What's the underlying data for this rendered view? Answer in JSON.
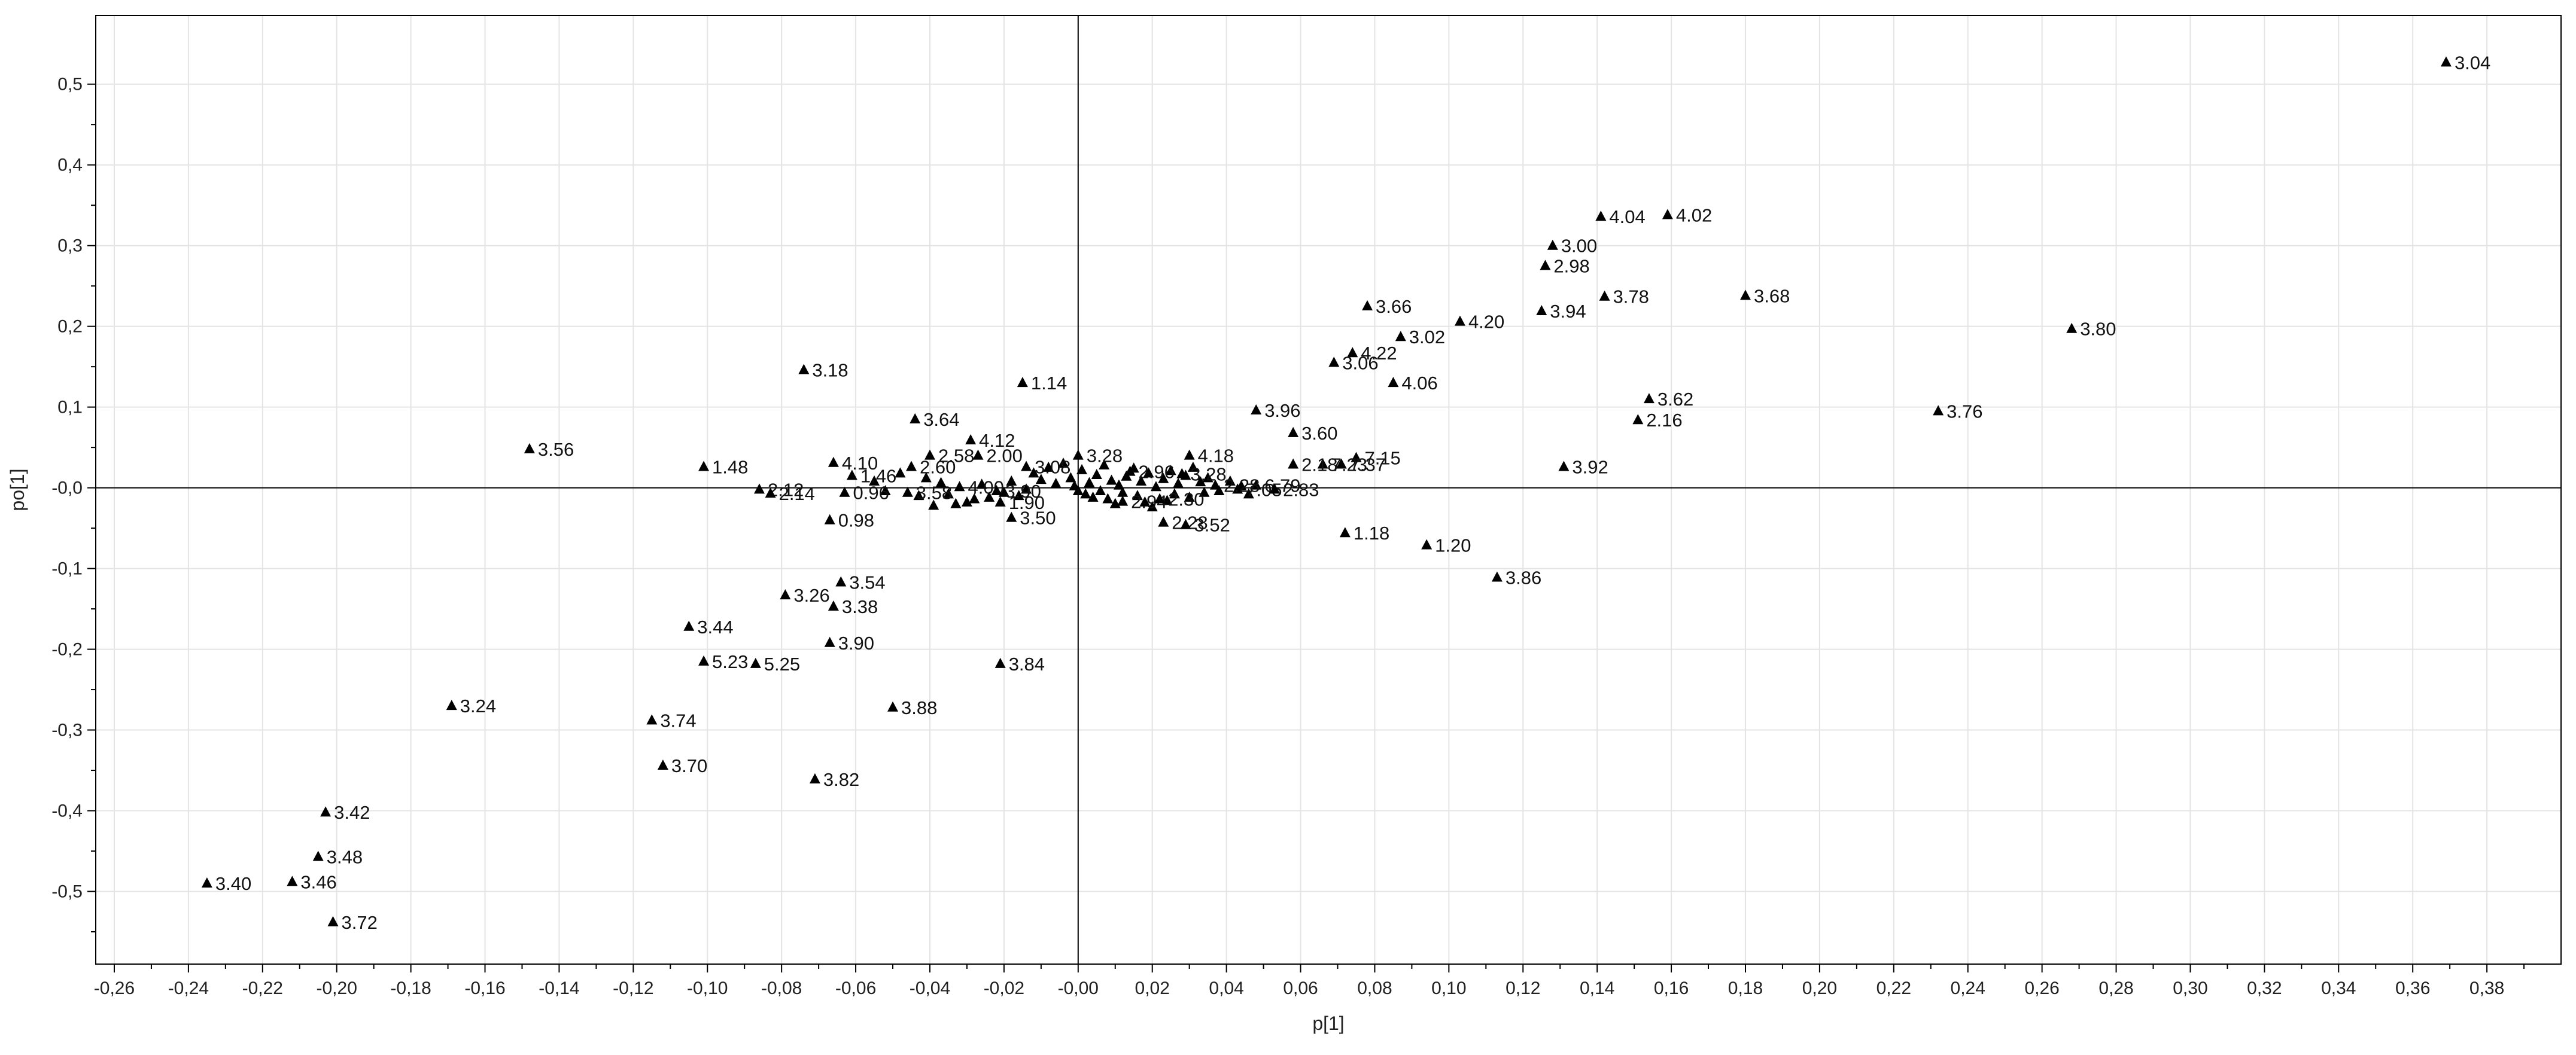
{
  "chart_data": {
    "type": "scatter",
    "xlabel": "p[1]",
    "ylabel": "po[1]",
    "xlim": [
      -0.265,
      0.4
    ],
    "ylim": [
      -0.59,
      0.585
    ],
    "x_ticks": [
      -0.26,
      -0.24,
      -0.22,
      -0.2,
      -0.18,
      -0.16,
      -0.14,
      -0.12,
      -0.1,
      -0.08,
      -0.06,
      -0.04,
      -0.02,
      0.0,
      0.02,
      0.04,
      0.06,
      0.08,
      0.1,
      0.12,
      0.14,
      0.16,
      0.18,
      0.2,
      0.22,
      0.24,
      0.26,
      0.28,
      0.3,
      0.32,
      0.34,
      0.36,
      0.38
    ],
    "x_tick_labels": [
      "-0,26",
      "-0,24",
      "-0,22",
      "-0,20",
      "-0,18",
      "-0,16",
      "-0,14",
      "-0,12",
      "-0,10",
      "-0,08",
      "-0,06",
      "-0,04",
      "-0,02",
      "-0,00",
      "0,02",
      "0,04",
      "0,06",
      "0,08",
      "0,10",
      "0,12",
      "0,14",
      "0,16",
      "0,18",
      "0,20",
      "0,22",
      "0,24",
      "0,26",
      "0,28",
      "0,30",
      "0,32",
      "0,34",
      "0,36",
      "0,38"
    ],
    "y_ticks": [
      0.5,
      0.4,
      0.3,
      0.2,
      0.1,
      0.0,
      -0.1,
      -0.2,
      -0.3,
      -0.4,
      -0.5
    ],
    "y_tick_labels": [
      "0,5",
      "0,4",
      "0,3",
      "0,2",
      "0,1",
      "-0,0",
      "-0,1",
      "-0,2",
      "-0,3",
      "-0,4",
      "-0,5"
    ],
    "grid": true,
    "marker": "triangle",
    "marker_color": "#000000",
    "points": [
      {
        "x": 0.369,
        "y": 0.527,
        "label": "3.04"
      },
      {
        "x": 0.141,
        "y": 0.336,
        "label": "4.04"
      },
      {
        "x": 0.159,
        "y": 0.338,
        "label": "4.02"
      },
      {
        "x": 0.128,
        "y": 0.3,
        "label": "3.00"
      },
      {
        "x": 0.126,
        "y": 0.275,
        "label": "2.98"
      },
      {
        "x": 0.142,
        "y": 0.237,
        "label": "3.78"
      },
      {
        "x": 0.18,
        "y": 0.238,
        "label": "3.68"
      },
      {
        "x": 0.125,
        "y": 0.219,
        "label": "3.94"
      },
      {
        "x": 0.078,
        "y": 0.225,
        "label": "3.66"
      },
      {
        "x": 0.103,
        "y": 0.206,
        "label": "4.20"
      },
      {
        "x": 0.087,
        "y": 0.187,
        "label": "3.02"
      },
      {
        "x": 0.074,
        "y": 0.167,
        "label": "4.22"
      },
      {
        "x": 0.069,
        "y": 0.155,
        "label": "3.06"
      },
      {
        "x": 0.085,
        "y": 0.13,
        "label": "4.06"
      },
      {
        "x": 0.268,
        "y": 0.197,
        "label": "3.80"
      },
      {
        "x": 0.154,
        "y": 0.11,
        "label": "3.62"
      },
      {
        "x": 0.151,
        "y": 0.084,
        "label": "2.16"
      },
      {
        "x": 0.232,
        "y": 0.095,
        "label": "3.76"
      },
      {
        "x": 0.048,
        "y": 0.096,
        "label": "3.96"
      },
      {
        "x": 0.058,
        "y": 0.068,
        "label": "3.60"
      },
      {
        "x": 0.075,
        "y": 0.037,
        "label": "7.15"
      },
      {
        "x": 0.066,
        "y": 0.029,
        "label": "7.23"
      },
      {
        "x": 0.071,
        "y": 0.029,
        "label": "7.37"
      },
      {
        "x": 0.058,
        "y": 0.029,
        "label": "2.18"
      },
      {
        "x": 0.131,
        "y": 0.026,
        "label": "3.92"
      },
      {
        "x": 0.048,
        "y": 0.003,
        "label": "6.79"
      },
      {
        "x": 0.043,
        "y": -0.002,
        "label": "7.05"
      },
      {
        "x": 0.072,
        "y": -0.056,
        "label": "1.18"
      },
      {
        "x": 0.094,
        "y": -0.071,
        "label": "1.20"
      },
      {
        "x": 0.113,
        "y": -0.111,
        "label": "3.86"
      },
      {
        "x": -0.015,
        "y": 0.13,
        "label": "1.14"
      },
      {
        "x": -0.074,
        "y": 0.146,
        "label": "3.18"
      },
      {
        "x": -0.148,
        "y": 0.048,
        "label": "3.56"
      },
      {
        "x": -0.101,
        "y": 0.026,
        "label": "1.48"
      },
      {
        "x": -0.044,
        "y": 0.085,
        "label": "3.64"
      },
      {
        "x": -0.029,
        "y": 0.059,
        "label": "4.12"
      },
      {
        "x": -0.066,
        "y": 0.031,
        "label": "4.10"
      },
      {
        "x": -0.04,
        "y": 0.04,
        "label": "2.58"
      },
      {
        "x": -0.027,
        "y": 0.04,
        "label": "2.00"
      },
      {
        "x": -0.045,
        "y": 0.026,
        "label": "2.60"
      },
      {
        "x": -0.061,
        "y": 0.015,
        "label": "1.46"
      },
      {
        "x": -0.086,
        "y": -0.002,
        "label": "2.12"
      },
      {
        "x": -0.083,
        "y": -0.007,
        "label": "2.14"
      },
      {
        "x": -0.063,
        "y": -0.006,
        "label": "0.96"
      },
      {
        "x": -0.046,
        "y": -0.006,
        "label": "3.58"
      },
      {
        "x": -0.067,
        "y": -0.04,
        "label": "0.98"
      },
      {
        "x": -0.018,
        "y": -0.037,
        "label": "3.50"
      },
      {
        "x": -0.032,
        "y": 0.001,
        "label": "4.00"
      },
      {
        "x": 0.023,
        "y": -0.043,
        "label": "2.28"
      },
      {
        "x": 0.029,
        "y": -0.046,
        "label": "3.52"
      },
      {
        "x": 0.03,
        "y": 0.04,
        "label": "4.18"
      },
      {
        "x": 0.0,
        "y": 0.04,
        "label": "3.28"
      },
      {
        "x": -0.014,
        "y": 0.026,
        "label": "3.08"
      },
      {
        "x": 0.014,
        "y": 0.02,
        "label": "2.96"
      },
      {
        "x": 0.028,
        "y": 0.017,
        "label": "3.28"
      },
      {
        "x": 0.037,
        "y": 0.003,
        "label": "2.28"
      },
      {
        "x": 0.053,
        "y": -0.002,
        "label": "2.83"
      },
      {
        "x": 0.012,
        "y": -0.017,
        "label": "2.94"
      },
      {
        "x": 0.022,
        "y": -0.014,
        "label": "2.30"
      },
      {
        "x": -0.021,
        "y": -0.018,
        "label": "1.90"
      },
      {
        "x": -0.022,
        "y": -0.004,
        "label": "3.90"
      },
      {
        "x": -0.064,
        "y": -0.117,
        "label": "3.54"
      },
      {
        "x": -0.079,
        "y": -0.133,
        "label": "3.26"
      },
      {
        "x": -0.066,
        "y": -0.147,
        "label": "3.38"
      },
      {
        "x": -0.105,
        "y": -0.172,
        "label": "3.44"
      },
      {
        "x": -0.067,
        "y": -0.192,
        "label": "3.90"
      },
      {
        "x": -0.101,
        "y": -0.215,
        "label": "5.23"
      },
      {
        "x": -0.087,
        "y": -0.218,
        "label": "5.25"
      },
      {
        "x": -0.021,
        "y": -0.218,
        "label": "3.84"
      },
      {
        "x": -0.169,
        "y": -0.27,
        "label": "3.24"
      },
      {
        "x": -0.115,
        "y": -0.288,
        "label": "3.74"
      },
      {
        "x": -0.05,
        "y": -0.272,
        "label": "3.88"
      },
      {
        "x": -0.112,
        "y": -0.344,
        "label": "3.70"
      },
      {
        "x": -0.071,
        "y": -0.361,
        "label": "3.82"
      },
      {
        "x": -0.203,
        "y": -0.402,
        "label": "3.42"
      },
      {
        "x": -0.205,
        "y": -0.457,
        "label": "3.48"
      },
      {
        "x": -0.212,
        "y": -0.488,
        "label": "3.46"
      },
      {
        "x": -0.235,
        "y": -0.49,
        "label": "3.40"
      },
      {
        "x": -0.201,
        "y": -0.538,
        "label": "3.72"
      }
    ],
    "cluster_points": [
      [
        -0.012,
        0.018
      ],
      [
        -0.01,
        0.01
      ],
      [
        -0.008,
        0.025
      ],
      [
        -0.006,
        0.005
      ],
      [
        -0.004,
        0.03
      ],
      [
        -0.002,
        0.012
      ],
      [
        0.001,
        0.022
      ],
      [
        0.003,
        0.006
      ],
      [
        0.005,
        0.016
      ],
      [
        0.007,
        0.028
      ],
      [
        0.009,
        0.009
      ],
      [
        0.011,
        0.003
      ],
      [
        0.013,
        0.014
      ],
      [
        0.015,
        0.024
      ],
      [
        0.017,
        0.008
      ],
      [
        0.019,
        0.018
      ],
      [
        0.021,
        0.001
      ],
      [
        0.023,
        0.011
      ],
      [
        0.025,
        0.021
      ],
      [
        0.027,
        0.005
      ],
      [
        0.029,
        0.015
      ],
      [
        0.031,
        0.025
      ],
      [
        0.033,
        0.007
      ],
      [
        0.035,
        0.012
      ],
      [
        0.038,
        -0.004
      ],
      [
        0.041,
        0.008
      ],
      [
        0.044,
        0.002
      ],
      [
        0.046,
        -0.008
      ],
      [
        -0.014,
        -0.002
      ],
      [
        -0.016,
        -0.01
      ],
      [
        -0.018,
        0.008
      ],
      [
        -0.02,
        -0.006
      ],
      [
        -0.024,
        -0.012
      ],
      [
        -0.026,
        0.004
      ],
      [
        -0.028,
        -0.014
      ],
      [
        -0.03,
        -0.018
      ],
      [
        -0.033,
        -0.02
      ],
      [
        -0.035,
        -0.008
      ],
      [
        -0.037,
        0.006
      ],
      [
        -0.039,
        -0.022
      ],
      [
        -0.041,
        0.012
      ],
      [
        -0.043,
        -0.01
      ],
      [
        -0.048,
        0.018
      ],
      [
        -0.052,
        -0.004
      ],
      [
        -0.055,
        0.008
      ],
      [
        0.002,
        -0.008
      ],
      [
        0.004,
        -0.012
      ],
      [
        0.006,
        -0.004
      ],
      [
        0.008,
        -0.014
      ],
      [
        0.01,
        -0.02
      ],
      [
        0.012,
        -0.006
      ],
      [
        0.016,
        -0.01
      ],
      [
        0.018,
        -0.018
      ],
      [
        0.02,
        -0.024
      ],
      [
        0.024,
        -0.016
      ],
      [
        0.026,
        -0.008
      ],
      [
        0.03,
        -0.012
      ],
      [
        0.034,
        -0.006
      ],
      [
        -0.001,
        0.002
      ],
      [
        0.0,
        -0.004
      ]
    ]
  }
}
